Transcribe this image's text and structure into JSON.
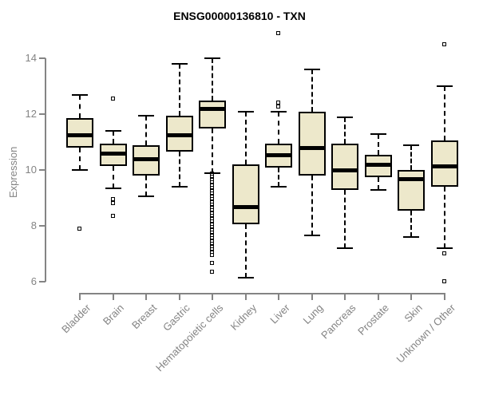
{
  "header": {
    "title": "ENSG00000136810 - TXN"
  },
  "colors": {
    "box_fill": "#EDE8CB",
    "box_border": "#000000",
    "median": "#000000",
    "axis": "#848484",
    "tick_label": "#848484",
    "title": "#000000",
    "background": "#ffffff"
  },
  "chart_data": {
    "type": "boxplot",
    "title": "ENSG00000136810 - TXN",
    "xlabel": "",
    "ylabel": "Expression",
    "ylim": [
      6,
      14
    ],
    "yticks": [
      6,
      8,
      10,
      12,
      14
    ],
    "grid": false,
    "legend": null,
    "categories": [
      "Bladder",
      "Brain",
      "Breast",
      "Gastric",
      "Hematopoietic cells",
      "Kidney",
      "Liver",
      "Lung",
      "Pancreas",
      "Prostate",
      "Skin",
      "Unknown / Other"
    ],
    "boxes": [
      {
        "category": "Bladder",
        "low": 10.0,
        "q1": 10.8,
        "median": 11.25,
        "q3": 11.85,
        "high": 12.7,
        "outliers": [
          7.9
        ]
      },
      {
        "category": "Brain",
        "low": 9.35,
        "q1": 10.15,
        "median": 10.6,
        "q3": 10.95,
        "high": 11.4,
        "outliers": [
          12.55,
          8.95,
          8.8,
          8.35
        ]
      },
      {
        "category": "Breast",
        "low": 9.05,
        "q1": 9.8,
        "median": 10.4,
        "q3": 10.9,
        "high": 11.95,
        "outliers": []
      },
      {
        "category": "Gastric",
        "low": 9.4,
        "q1": 10.65,
        "median": 11.25,
        "q3": 11.95,
        "high": 13.8,
        "outliers": []
      },
      {
        "category": "Hematopoietic cells",
        "low": 9.9,
        "q1": 11.5,
        "median": 12.2,
        "q3": 12.5,
        "high": 14.0,
        "outliers": [
          9.85,
          9.75,
          9.65,
          9.55,
          9.45,
          9.35,
          9.25,
          9.15,
          9.05,
          8.95,
          8.85,
          8.75,
          8.65,
          8.55,
          8.45,
          8.35,
          8.25,
          8.15,
          8.05,
          7.95,
          7.85,
          7.75,
          7.65,
          7.55,
          7.45,
          7.35,
          7.25,
          7.15,
          7.05,
          6.95,
          6.65,
          6.35
        ]
      },
      {
        "category": "Kidney",
        "low": 6.15,
        "q1": 8.05,
        "median": 8.7,
        "q3": 10.2,
        "high": 12.1,
        "outliers": []
      },
      {
        "category": "Liver",
        "low": 9.4,
        "q1": 10.1,
        "median": 10.55,
        "q3": 10.95,
        "high": 12.1,
        "outliers": [
          14.9,
          12.4,
          12.25
        ]
      },
      {
        "category": "Lung",
        "low": 7.65,
        "q1": 9.8,
        "median": 10.8,
        "q3": 12.1,
        "high": 13.6,
        "outliers": []
      },
      {
        "category": "Pancreas",
        "low": 7.2,
        "q1": 9.3,
        "median": 10.0,
        "q3": 10.95,
        "high": 11.9,
        "outliers": []
      },
      {
        "category": "Prostate",
        "low": 9.3,
        "q1": 9.75,
        "median": 10.2,
        "q3": 10.55,
        "high": 11.3,
        "outliers": []
      },
      {
        "category": "Skin",
        "low": 7.6,
        "q1": 8.55,
        "median": 9.7,
        "q3": 10.0,
        "high": 10.9,
        "outliers": []
      },
      {
        "category": "Unknown / Other",
        "low": 7.2,
        "q1": 9.4,
        "median": 10.15,
        "q3": 11.05,
        "high": 13.0,
        "outliers": [
          14.5,
          7.0,
          6.0
        ]
      }
    ]
  }
}
